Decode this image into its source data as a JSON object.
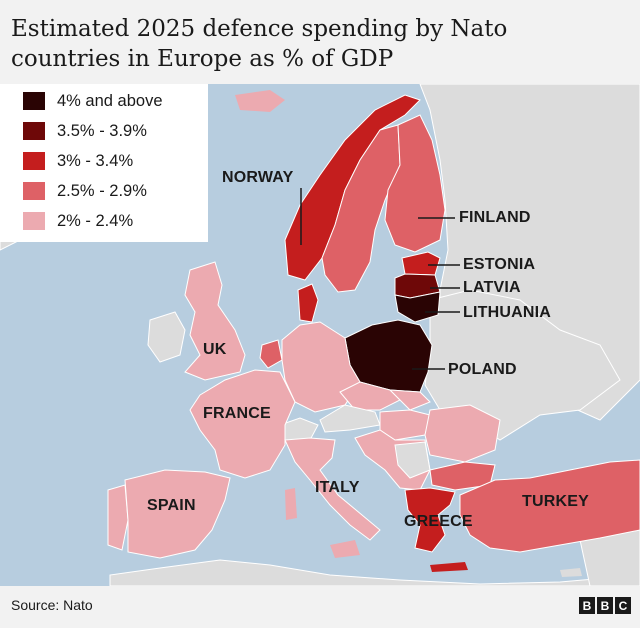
{
  "title": "Estimated 2025 defence spending by Nato countries in Europe as % of GDP",
  "legend": [
    {
      "label": "4% and above",
      "color": "#2a0404"
    },
    {
      "label": "3.5% - 3.9%",
      "color": "#6e0808"
    },
    {
      "label": "3% - 3.4%",
      "color": "#c41e1e"
    },
    {
      "label": "2.5% - 2.9%",
      "color": "#de6166"
    },
    {
      "label": "2% - 2.4%",
      "color": "#ecaab0"
    }
  ],
  "labels": {
    "norway": "NORWAY",
    "finland": "FINLAND",
    "estonia": "ESTONIA",
    "latvia": "LATVIA",
    "lithuania": "LITHUANIA",
    "poland": "POLAND",
    "uk": "UK",
    "france": "FRANCE",
    "italy": "ITALY",
    "spain": "SPAIN",
    "greece": "GREECE",
    "turkey": "TURKEY"
  },
  "source": "Source: Nato",
  "logo": [
    "B",
    "B",
    "C"
  ]
}
